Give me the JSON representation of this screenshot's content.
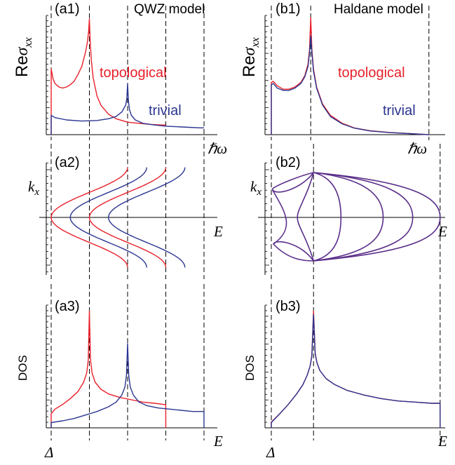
{
  "figure": {
    "left_title": "QWZ model",
    "right_title": "Haldane model",
    "sigma_label_prefix": "Re",
    "sigma_label_symbol": "σ",
    "sigma_label_sub": "xx",
    "kx_label_symbol": "k",
    "kx_label_sub": "x",
    "dos_label": "DOS",
    "hw_label": "ℏω",
    "e_label": "E",
    "delta_label": "Δ"
  },
  "panels": [
    {
      "id": "a1",
      "label": "(a1)"
    },
    {
      "id": "a2",
      "label": "(a2)"
    },
    {
      "id": "a3",
      "label": "(a3)"
    },
    {
      "id": "b1",
      "label": "(b1)"
    },
    {
      "id": "b2",
      "label": "(b2)"
    },
    {
      "id": "b3",
      "label": "(b3)"
    }
  ],
  "series_names": {
    "topological": "topological",
    "trivial": "trivial"
  },
  "colors": {
    "topological": "#e8202a",
    "trivial": "#2b3590",
    "combined": "#5a2e8a",
    "axis": "#000000"
  },
  "chart_data": [
    {
      "id": "a1",
      "type": "line",
      "title": "QWZ model",
      "xlabel": "ℏω",
      "ylabel": "Reσxx",
      "xlim": [
        0,
        4.3
      ],
      "ylim": [
        0,
        1.05
      ],
      "vlines": [
        0,
        1,
        2,
        3,
        4
      ],
      "xtick_labels": [],
      "ytick_labels": [],
      "series": [
        {
          "name": "topological",
          "color": "#e8202a",
          "x": [
            0,
            0.0001,
            0.05,
            0.1,
            0.2,
            0.3,
            0.4,
            0.5,
            0.6,
            0.7,
            0.8,
            0.9,
            0.95,
            0.98,
            1.0,
            1.02,
            1.05,
            1.1,
            1.2,
            1.3,
            1.5,
            1.7,
            2.0,
            2.3,
            2.6,
            2.9,
            3.0
          ],
          "y": [
            0,
            0.58,
            0.49,
            0.45,
            0.42,
            0.41,
            0.42,
            0.44,
            0.47,
            0.53,
            0.6,
            0.73,
            0.82,
            0.91,
            1.02,
            0.83,
            0.66,
            0.5,
            0.34,
            0.26,
            0.18,
            0.14,
            0.11,
            0.1,
            0.09,
            0.085,
            0.085
          ]
        },
        {
          "name": "trivial",
          "color": "#2b3590",
          "x": [
            0,
            0.0001,
            0.1,
            0.4,
            0.8,
            1.2,
            1.5,
            1.7,
            1.85,
            1.95,
            1.98,
            2.0,
            2.02,
            2.05,
            2.1,
            2.2,
            2.4,
            2.7,
            3.0,
            3.3,
            3.6,
            3.9,
            4.0
          ],
          "y": [
            0,
            0.17,
            0.15,
            0.13,
            0.12,
            0.125,
            0.14,
            0.16,
            0.2,
            0.26,
            0.32,
            0.45,
            0.3,
            0.22,
            0.17,
            0.13,
            0.1,
            0.085,
            0.075,
            0.07,
            0.065,
            0.06,
            0.06
          ]
        }
      ]
    },
    {
      "id": "a2",
      "type": "line",
      "xlabel": "E",
      "ylabel": "kx",
      "xlim": [
        0,
        4.3
      ],
      "ylim": [
        -1.1,
        1.1
      ],
      "vlines": [
        0,
        1,
        2,
        3,
        4
      ],
      "curve_shape": "E(kx) = E0 + 2·(1 − cos(π·kx)), kx ∈ [−1, 1]",
      "series": [
        {
          "name": "topological",
          "color": "#e8202a",
          "band_minima": [
            0,
            2
          ]
        },
        {
          "name": "trivial",
          "color": "#2b3590",
          "band_minima": [
            1,
            3
          ]
        }
      ]
    },
    {
      "id": "a3",
      "type": "line",
      "xlabel": "E",
      "ylabel": "DOS",
      "xlim": [
        0,
        4.3
      ],
      "ylim": [
        0,
        1.05
      ],
      "vlines": [
        0,
        1,
        2,
        3,
        4
      ],
      "xtick_labels": [
        "Δ"
      ],
      "series": [
        {
          "name": "topological",
          "color": "#e8202a",
          "x": [
            0,
            0.0001,
            0.1,
            0.3,
            0.5,
            0.7,
            0.85,
            0.93,
            0.97,
            1.0,
            1.03,
            1.07,
            1.15,
            1.3,
            1.5,
            1.8,
            2.1,
            2.4,
            2.7,
            2.95,
            2.999,
            3.0
          ],
          "y": [
            0,
            0.12,
            0.16,
            0.2,
            0.25,
            0.31,
            0.39,
            0.47,
            0.58,
            1.0,
            0.58,
            0.47,
            0.39,
            0.33,
            0.29,
            0.26,
            0.24,
            0.22,
            0.21,
            0.2,
            0.2,
            0
          ]
        },
        {
          "name": "trivial",
          "color": "#2b3590",
          "x": [
            0,
            0.0001,
            0.3,
            0.6,
            0.9,
            1.2,
            1.5,
            1.7,
            1.85,
            1.93,
            1.97,
            2.0,
            2.03,
            2.07,
            2.15,
            2.3,
            2.5,
            2.8,
            3.1,
            3.4,
            3.7,
            3.999,
            4.0
          ],
          "y": [
            0,
            0.045,
            0.06,
            0.08,
            0.11,
            0.14,
            0.18,
            0.22,
            0.28,
            0.35,
            0.45,
            0.72,
            0.45,
            0.35,
            0.28,
            0.22,
            0.19,
            0.17,
            0.16,
            0.15,
            0.14,
            0.14,
            0
          ]
        }
      ]
    },
    {
      "id": "b1",
      "type": "line",
      "title": "Haldane model",
      "xlabel": "ℏω",
      "ylabel": "Reσxx",
      "xlim": [
        0,
        4.3
      ],
      "ylim": [
        0,
        1.05
      ],
      "vlines": [
        0,
        1,
        4
      ],
      "series": [
        {
          "name": "topological",
          "color": "#e8202a",
          "x": [
            0,
            0.0001,
            0.05,
            0.15,
            0.3,
            0.45,
            0.6,
            0.75,
            0.85,
            0.93,
            0.97,
            1.0,
            1.03,
            1.07,
            1.15,
            1.3,
            1.5,
            1.8,
            2.1,
            2.5,
            3.0,
            3.5,
            4.0
          ],
          "y": [
            0,
            0.46,
            0.47,
            0.43,
            0.4,
            0.4,
            0.42,
            0.46,
            0.52,
            0.62,
            0.75,
            1.03,
            0.75,
            0.58,
            0.42,
            0.27,
            0.17,
            0.1,
            0.06,
            0.035,
            0.02,
            0.01,
            0
          ]
        },
        {
          "name": "trivial",
          "color": "#2b3590",
          "x": [
            0,
            0.0001,
            0.05,
            0.15,
            0.3,
            0.45,
            0.6,
            0.75,
            0.85,
            0.93,
            0.97,
            1.0,
            1.03,
            1.07,
            1.15,
            1.3,
            1.5,
            1.8,
            2.1,
            2.5,
            3.0,
            3.5,
            4.0
          ],
          "y": [
            0,
            0.44,
            0.45,
            0.41,
            0.39,
            0.39,
            0.41,
            0.45,
            0.51,
            0.6,
            0.72,
            0.87,
            0.72,
            0.56,
            0.41,
            0.26,
            0.16,
            0.095,
            0.058,
            0.033,
            0.018,
            0.009,
            0
          ]
        }
      ]
    },
    {
      "id": "b2",
      "type": "line",
      "xlabel": "E",
      "ylabel": "kx",
      "xlim": [
        0,
        4.3
      ],
      "ylim": [
        -1.1,
        1.1
      ],
      "vlines": [
        0,
        1,
        4
      ],
      "curve_shape": "closed band contours spanning E = 0 … 4, pinched at E = 1",
      "series": [
        {
          "name": "topological + trivial (overlapping)",
          "color": "#5a2e8a"
        }
      ]
    },
    {
      "id": "b3",
      "type": "line",
      "xlabel": "E",
      "ylabel": "DOS",
      "xlim": [
        0,
        4.3
      ],
      "ylim": [
        0,
        1.05
      ],
      "vlines": [
        0,
        1,
        4
      ],
      "xtick_labels": [
        "Δ"
      ],
      "series": [
        {
          "name": "topological",
          "color": "#e8202a",
          "x": [
            0,
            0.0001,
            0.2,
            0.4,
            0.6,
            0.75,
            0.85,
            0.92,
            0.96,
            1.0,
            1.04,
            1.08,
            1.15,
            1.3,
            1.5,
            1.8,
            2.2,
            2.6,
            3.0,
            3.4,
            3.8,
            3.999,
            4.0
          ],
          "y": [
            0,
            0.05,
            0.12,
            0.2,
            0.29,
            0.37,
            0.45,
            0.53,
            0.62,
            1.0,
            0.64,
            0.56,
            0.49,
            0.42,
            0.37,
            0.32,
            0.28,
            0.25,
            0.23,
            0.22,
            0.21,
            0.21,
            0
          ]
        },
        {
          "name": "trivial",
          "color": "#2b3590",
          "x": [
            0,
            0.0001,
            0.2,
            0.4,
            0.6,
            0.75,
            0.85,
            0.92,
            0.96,
            1.0,
            1.04,
            1.08,
            1.15,
            1.3,
            1.5,
            1.8,
            2.2,
            2.6,
            3.0,
            3.4,
            3.8,
            3.999,
            4.0
          ],
          "y": [
            0,
            0.045,
            0.12,
            0.2,
            0.29,
            0.37,
            0.45,
            0.53,
            0.61,
            0.97,
            0.63,
            0.56,
            0.49,
            0.42,
            0.37,
            0.32,
            0.28,
            0.25,
            0.23,
            0.22,
            0.21,
            0.21,
            0
          ]
        }
      ]
    }
  ]
}
